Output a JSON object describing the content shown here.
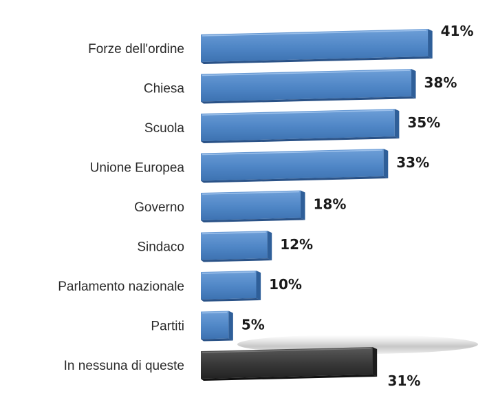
{
  "chart_data": {
    "type": "bar",
    "orientation": "horizontal",
    "categories": [
      "Forze dell'ordine",
      "Chiesa",
      "Scuola",
      "Unione Europea",
      "Governo",
      "Sindaco",
      "Parlamento nazionale",
      "Partiti",
      "In nessuna di queste"
    ],
    "values": [
      41,
      38,
      35,
      33,
      18,
      12,
      10,
      5,
      31
    ],
    "value_labels": [
      "41%",
      "38%",
      "35%",
      "33%",
      "18%",
      "12%",
      "10%",
      "5%",
      "31%"
    ],
    "unit": "%",
    "bar_colors": [
      "#4f86c6",
      "#4f86c6",
      "#4f86c6",
      "#4f86c6",
      "#4f86c6",
      "#4f86c6",
      "#4f86c6",
      "#4f86c6",
      "#3a3a3a"
    ],
    "title": "",
    "xlabel": "",
    "ylabel": "",
    "grid": false,
    "legend": "none"
  }
}
